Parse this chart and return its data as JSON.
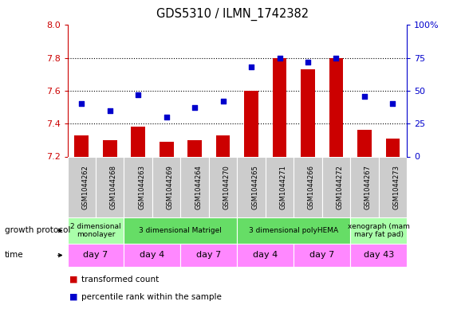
{
  "title": "GDS5310 / ILMN_1742382",
  "samples": [
    "GSM1044262",
    "GSM1044268",
    "GSM1044263",
    "GSM1044269",
    "GSM1044264",
    "GSM1044270",
    "GSM1044265",
    "GSM1044271",
    "GSM1044266",
    "GSM1044272",
    "GSM1044267",
    "GSM1044273"
  ],
  "bar_values": [
    7.33,
    7.3,
    7.38,
    7.29,
    7.3,
    7.33,
    7.6,
    7.8,
    7.73,
    7.8,
    7.36,
    7.31
  ],
  "dot_values": [
    40,
    35,
    47,
    30,
    37,
    42,
    68,
    75,
    72,
    75,
    46,
    40
  ],
  "bar_color": "#cc0000",
  "dot_color": "#0000cc",
  "ylim_left": [
    7.2,
    8.0
  ],
  "ylim_right": [
    0,
    100
  ],
  "yticks_left": [
    7.2,
    7.4,
    7.6,
    7.8,
    8.0
  ],
  "yticks_right": [
    0,
    25,
    50,
    75,
    100
  ],
  "ytick_labels_right": [
    "0",
    "25",
    "50",
    "75",
    "100%"
  ],
  "growth_protocol_groups": [
    {
      "label": "2 dimensional\nmonolayer",
      "start": 0,
      "end": 2,
      "color": "#aaffaa"
    },
    {
      "label": "3 dimensional Matrigel",
      "start": 2,
      "end": 6,
      "color": "#66dd66"
    },
    {
      "label": "3 dimensional polyHEMA",
      "start": 6,
      "end": 10,
      "color": "#66dd66"
    },
    {
      "label": "xenograph (mam\nmary fat pad)",
      "start": 10,
      "end": 12,
      "color": "#aaffaa"
    }
  ],
  "time_groups": [
    {
      "label": "day 7",
      "start": 0,
      "end": 2,
      "color": "#ff88ff"
    },
    {
      "label": "day 4",
      "start": 2,
      "end": 4,
      "color": "#ff88ff"
    },
    {
      "label": "day 7",
      "start": 4,
      "end": 6,
      "color": "#ff88ff"
    },
    {
      "label": "day 4",
      "start": 6,
      "end": 8,
      "color": "#ff88ff"
    },
    {
      "label": "day 7",
      "start": 8,
      "end": 10,
      "color": "#ff88ff"
    },
    {
      "label": "day 43",
      "start": 10,
      "end": 12,
      "color": "#ff88ff"
    }
  ],
  "legend_items": [
    {
      "label": "transformed count",
      "color": "#cc0000"
    },
    {
      "label": "percentile rank within the sample",
      "color": "#0000cc"
    }
  ],
  "bar_width": 0.5,
  "bg_color": "#ffffff",
  "grid_color": "#000000",
  "label_left_color": "#cc0000",
  "label_right_color": "#0000cc",
  "sample_bg_color": "#cccccc"
}
